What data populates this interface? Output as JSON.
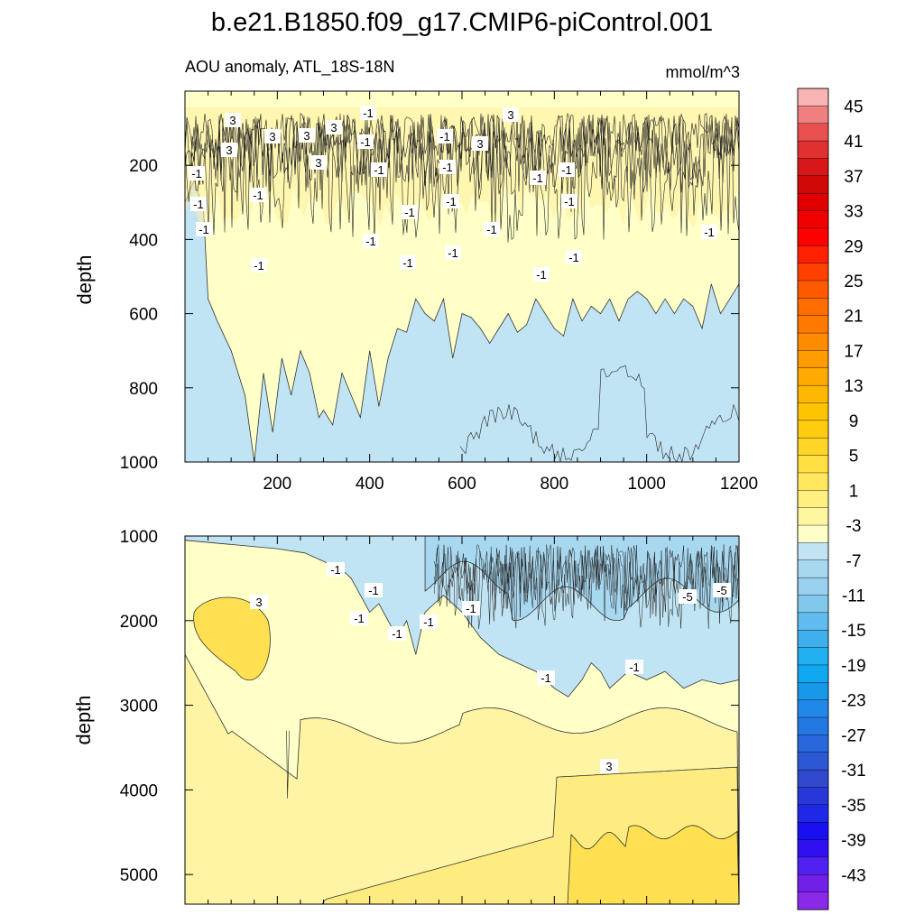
{
  "figure_title": "b.e21.B1850.f09_g17.CMIP6-piControl.001",
  "chart_data": [
    {
      "type": "contour",
      "panel": "upper",
      "title_left": "AOU anomaly, ATL_18S-18N",
      "title_right": "mmol/m^3",
      "ylabel": "depth",
      "xlabel": "",
      "xlim": [
        0,
        1200
      ],
      "ylim": [
        1000,
        0
      ],
      "x_ticks": [
        200,
        400,
        600,
        800,
        1000,
        1200
      ],
      "y_ticks": [
        200,
        400,
        600,
        800,
        1000
      ],
      "fill_boundary_depth": [
        [
          0,
          300
        ],
        [
          20,
          240
        ],
        [
          40,
          320
        ],
        [
          50,
          560
        ],
        [
          70,
          620
        ],
        [
          100,
          700
        ],
        [
          130,
          820
        ],
        [
          150,
          1000
        ],
        [
          170,
          760
        ],
        [
          190,
          920
        ],
        [
          210,
          720
        ],
        [
          230,
          820
        ],
        [
          250,
          700
        ],
        [
          270,
          760
        ],
        [
          290,
          880
        ],
        [
          300,
          860
        ],
        [
          320,
          900
        ],
        [
          340,
          760
        ],
        [
          360,
          820
        ],
        [
          380,
          880
        ],
        [
          400,
          700
        ],
        [
          420,
          850
        ],
        [
          440,
          720
        ],
        [
          460,
          640
        ],
        [
          480,
          650
        ],
        [
          500,
          560
        ],
        [
          520,
          600
        ],
        [
          540,
          620
        ],
        [
          560,
          560
        ],
        [
          580,
          720
        ],
        [
          600,
          600
        ],
        [
          620,
          610
        ],
        [
          640,
          640
        ],
        [
          660,
          680
        ],
        [
          680,
          640
        ],
        [
          700,
          600
        ],
        [
          720,
          650
        ],
        [
          740,
          630
        ],
        [
          760,
          560
        ],
        [
          780,
          600
        ],
        [
          800,
          640
        ],
        [
          820,
          660
        ],
        [
          840,
          560
        ],
        [
          860,
          620
        ],
        [
          880,
          580
        ],
        [
          900,
          600
        ],
        [
          920,
          560
        ],
        [
          940,
          620
        ],
        [
          960,
          560
        ],
        [
          980,
          540
        ],
        [
          1000,
          560
        ],
        [
          1020,
          600
        ],
        [
          1040,
          560
        ],
        [
          1060,
          600
        ],
        [
          1080,
          560
        ],
        [
          1100,
          580
        ],
        [
          1120,
          640
        ],
        [
          1140,
          520
        ],
        [
          1160,
          600
        ],
        [
          1180,
          560
        ],
        [
          1200,
          520
        ]
      ],
      "contour_labels": [
        "3",
        "3",
        "3",
        "3",
        "3",
        "3",
        "3",
        "3",
        "-1",
        "-1",
        "-1",
        "-1",
        "-1",
        "-1",
        "-1",
        "-1",
        "-1",
        "-1",
        "-1",
        "-1",
        "-1",
        "-1",
        "-1",
        "-1",
        "-1",
        "-1",
        "-1",
        "-1",
        "-1",
        "-1"
      ]
    },
    {
      "type": "contour",
      "panel": "lower",
      "title_left": "",
      "title_right": "",
      "ylabel": "depth",
      "xlabel": "",
      "xlim": [
        0,
        1200
      ],
      "ylim": [
        5350,
        1000
      ],
      "x_ticks": [
        200,
        400,
        600,
        800,
        1000,
        1200
      ],
      "y_ticks": [
        1000,
        2000,
        3000,
        4000,
        5000
      ],
      "neg_boundary_depth": [
        [
          0,
          1050
        ],
        [
          100,
          1100
        ],
        [
          200,
          1150
        ],
        [
          260,
          1200
        ],
        [
          300,
          1300
        ],
        [
          340,
          1400
        ],
        [
          360,
          1500
        ],
        [
          380,
          1700
        ],
        [
          400,
          1900
        ],
        [
          420,
          1800
        ],
        [
          440,
          2000
        ],
        [
          460,
          2200
        ],
        [
          480,
          2000
        ],
        [
          500,
          2400
        ],
        [
          520,
          1900
        ],
        [
          540,
          1800
        ],
        [
          560,
          1700
        ],
        [
          600,
          1900
        ],
        [
          640,
          2200
        ],
        [
          680,
          2400
        ],
        [
          720,
          2500
        ],
        [
          760,
          2600
        ],
        [
          800,
          2800
        ],
        [
          830,
          2900
        ],
        [
          860,
          2700
        ],
        [
          880,
          2500
        ],
        [
          900,
          2600
        ],
        [
          920,
          2800
        ],
        [
          940,
          2700
        ],
        [
          960,
          2600
        ],
        [
          1000,
          2700
        ],
        [
          1040,
          2600
        ],
        [
          1080,
          2800
        ],
        [
          1120,
          2700
        ],
        [
          1160,
          2750
        ],
        [
          1200,
          2700
        ]
      ],
      "contour_labels": [
        "3",
        "3",
        "-1",
        "-1",
        "-1",
        "-1",
        "-1",
        "-1",
        "-1",
        "-1",
        "-5",
        "-5"
      ]
    }
  ],
  "colorbar": {
    "labels": [
      "45",
      "41",
      "37",
      "33",
      "29",
      "25",
      "21",
      "17",
      "13",
      "9",
      "5",
      "1",
      "-3",
      "-7",
      "-11",
      "-15",
      "-19",
      "-23",
      "-27",
      "-31",
      "-35",
      "-39",
      "-43"
    ],
    "colors": [
      "#f8b4b4",
      "#f08080",
      "#e85050",
      "#e03030",
      "#d81818",
      "#d00808",
      "#e00000",
      "#f00000",
      "#ff0000",
      "#ff2000",
      "#ff4000",
      "#ff5a00",
      "#ff6c00",
      "#ff7800",
      "#ff8c00",
      "#ff9c00",
      "#ffaa00",
      "#ffb800",
      "#ffc400",
      "#ffcc10",
      "#ffd628",
      "#ffe040",
      "#ffe860",
      "#fff080",
      "#fff7a0",
      "#ffffc8",
      "#c0e4f4",
      "#a8d8f0",
      "#98d0ee",
      "#80c8ec",
      "#60bcec",
      "#40b0ec",
      "#20b0f0",
      "#10a8f0",
      "#1898e8",
      "#2088e8",
      "#2478e4",
      "#2868dc",
      "#2c58d4",
      "#3048cc",
      "#2838d8",
      "#2028e8",
      "#1810f0",
      "#3010f0",
      "#5020f0",
      "#7020e8",
      "#8a2ae8"
    ]
  }
}
